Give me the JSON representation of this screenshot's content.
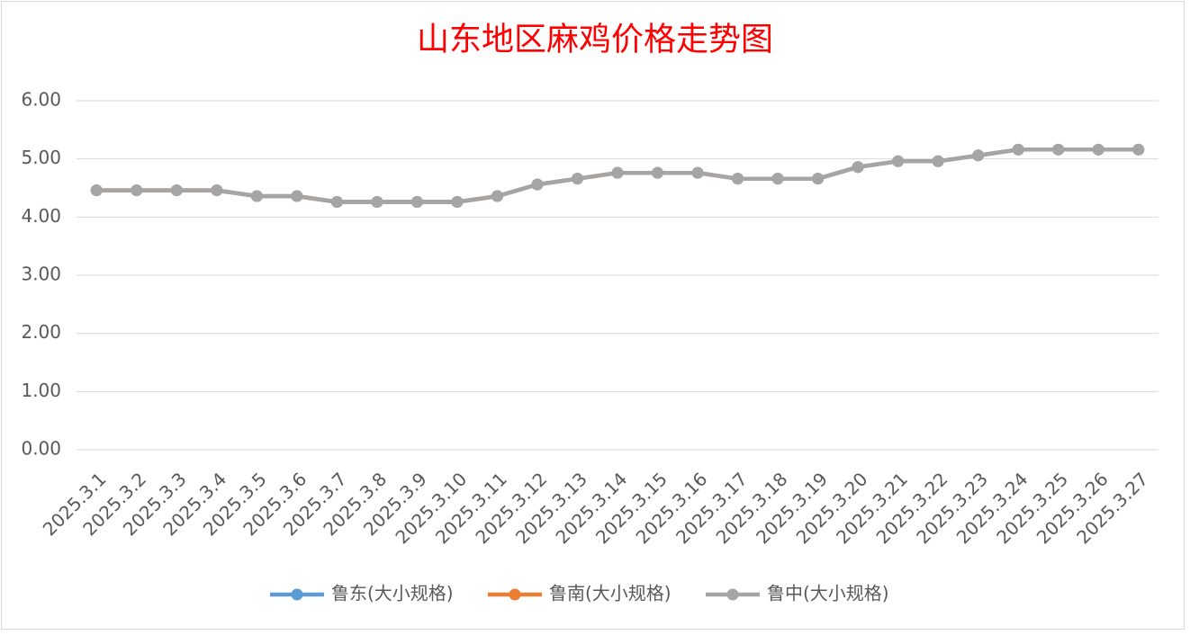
{
  "chart_data": {
    "type": "line",
    "title": "山东地区麻鸡价格走势图",
    "categories": [
      "2025.3.1",
      "2025.3.2",
      "2025.3.3",
      "2025.3.4",
      "2025.3.5",
      "2025.3.6",
      "2025.3.7",
      "2025.3.8",
      "2025.3.9",
      "2025.3.10",
      "2025.3.11",
      "2025.3.12",
      "2025.3.13",
      "2025.3.14",
      "2025.3.15",
      "2025.3.16",
      "2025.3.17",
      "2025.3.18",
      "2025.3.19",
      "2025.3.20",
      "2025.3.21",
      "2025.3.22",
      "2025.3.23",
      "2025.3.24",
      "2025.3.25",
      "2025.3.26",
      "2025.3.27"
    ],
    "series": [
      {
        "name": "鲁东(大小规格)",
        "color": "#5b9bd5",
        "values": [
          4.46,
          4.46,
          4.46,
          4.46,
          4.36,
          4.36,
          4.26,
          4.26,
          4.26,
          4.26,
          4.36,
          4.56,
          4.66,
          4.76,
          4.76,
          4.76,
          4.66,
          4.66,
          4.66,
          4.86,
          4.96,
          4.96,
          5.06,
          5.16,
          5.16,
          5.16,
          5.16
        ]
      },
      {
        "name": "鲁南(大小规格)",
        "color": "#ed7d31",
        "values": [
          4.46,
          4.46,
          4.46,
          4.46,
          4.36,
          4.36,
          4.26,
          4.26,
          4.26,
          4.26,
          4.36,
          4.56,
          4.66,
          4.76,
          4.76,
          4.76,
          4.66,
          4.66,
          4.66,
          4.86,
          4.96,
          4.96,
          5.06,
          5.16,
          5.16,
          5.16,
          5.16
        ]
      },
      {
        "name": "鲁中(大小规格)",
        "color": "#a5a5a5",
        "values": [
          4.46,
          4.46,
          4.46,
          4.46,
          4.36,
          4.36,
          4.26,
          4.26,
          4.26,
          4.26,
          4.36,
          4.56,
          4.66,
          4.76,
          4.76,
          4.76,
          4.66,
          4.66,
          4.66,
          4.86,
          4.96,
          4.96,
          5.06,
          5.16,
          5.16,
          5.16,
          5.16
        ]
      }
    ],
    "ylim": [
      0,
      6
    ],
    "yticks": [
      {
        "value": 0,
        "label": "0.00"
      },
      {
        "value": 1,
        "label": "1.00"
      },
      {
        "value": 2,
        "label": "2.00"
      },
      {
        "value": 3,
        "label": "3.00"
      },
      {
        "value": 4,
        "label": "4.00"
      },
      {
        "value": 5,
        "label": "5.00"
      },
      {
        "value": 6,
        "label": "6.00"
      }
    ],
    "grid": true,
    "legend": "bottom"
  }
}
